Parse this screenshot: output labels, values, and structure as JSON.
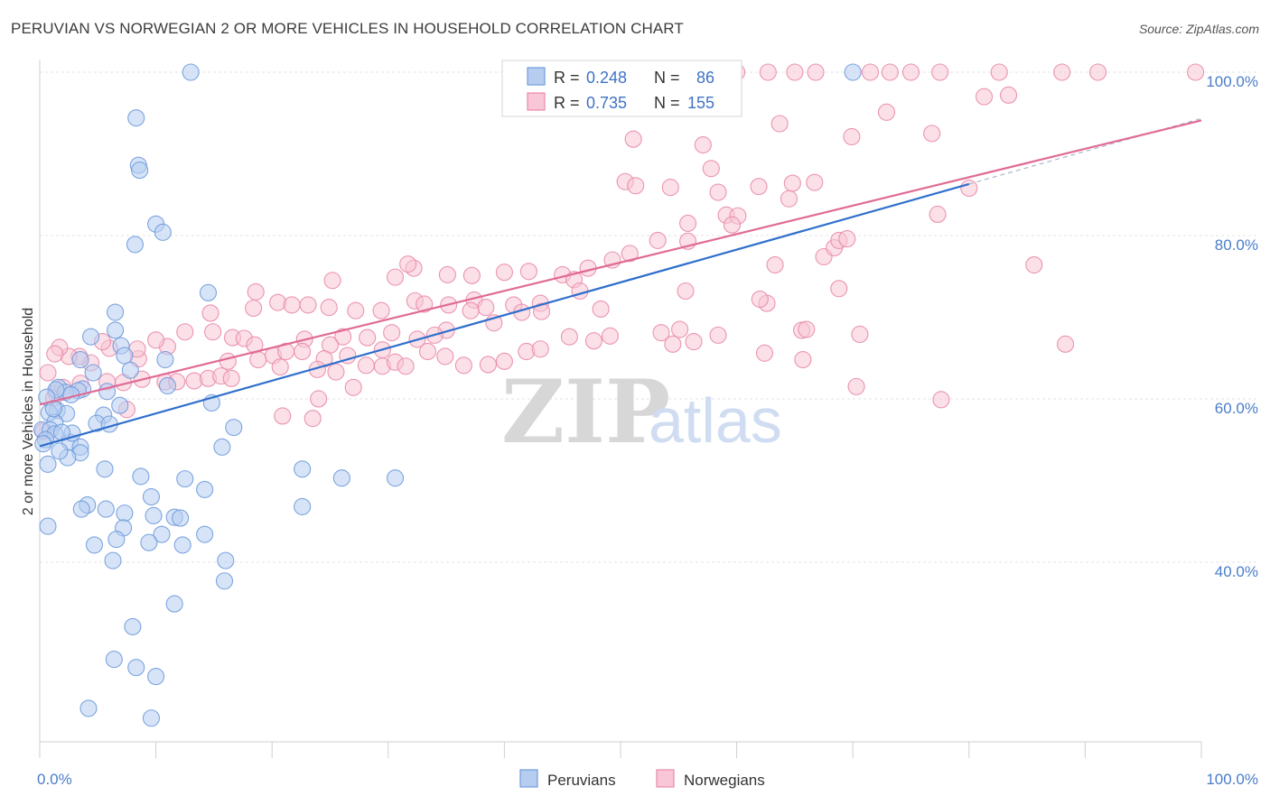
{
  "title": "PERUVIAN VS NORWEGIAN 2 OR MORE VEHICLES IN HOUSEHOLD CORRELATION CHART",
  "source": "Source: ZipAtlas.com",
  "watermark": {
    "part1": "ZIP",
    "part2": "atlas"
  },
  "legend_box": {
    "rows": [
      {
        "r_label": "R =",
        "r_value": "0.248",
        "n_label": "N =",
        "n_value": "86",
        "color": "#a9c4ec"
      },
      {
        "r_label": "R =",
        "r_value": "0.735",
        "n_label": "N =",
        "n_value": "155",
        "color": "#f5b3c8"
      }
    ]
  },
  "bottom_legend": [
    "Peruvians",
    "Norwegians"
  ],
  "chart_data": {
    "type": "scatter",
    "title": "PERUVIAN VS NORWEGIAN 2 OR MORE VEHICLES IN HOUSEHOLD CORRELATION CHART",
    "xlabel": "",
    "ylabel": "2 or more Vehicles in Household",
    "xlim": [
      0,
      100
    ],
    "ylim": [
      18,
      100
    ],
    "x_tick_labels": [
      "0.0%",
      "100.0%"
    ],
    "y_tick_labels": [
      "40.0%",
      "60.0%",
      "80.0%",
      "100.0%"
    ],
    "y_ticks": [
      40,
      60,
      80,
      100
    ],
    "grid": true,
    "legend_position": "top-center",
    "colors": {
      "peruvians": "#6f9bdd",
      "peruvians_fill": "#b6cdf0",
      "norwegians": "#e98aa8",
      "norwegians_fill": "#f8c6d6",
      "peru_line": "#2f6fcc",
      "norw_line": "#e06b94"
    },
    "series": [
      {
        "name": "Peruvians",
        "R": 0.248,
        "N": 86,
        "trend": {
          "x": [
            0,
            80
          ],
          "y": [
            54.2,
            86.3
          ]
        },
        "points": [
          [
            13,
            100
          ],
          [
            70,
            100
          ],
          [
            8.3,
            94.4
          ],
          [
            8.5,
            88.6
          ],
          [
            8.6,
            88
          ],
          [
            10,
            81.4
          ],
          [
            10.6,
            80.4
          ],
          [
            8.2,
            78.9
          ],
          [
            14.5,
            73
          ],
          [
            6.5,
            70.6
          ],
          [
            6.5,
            68.4
          ],
          [
            4.4,
            67.6
          ],
          [
            7,
            66.5
          ],
          [
            7.3,
            65.3
          ],
          [
            3.5,
            64.8
          ],
          [
            10.8,
            64.8
          ],
          [
            11,
            61.6
          ],
          [
            1.6,
            61.4
          ],
          [
            3.7,
            61.2
          ],
          [
            3.3,
            61
          ],
          [
            1.5,
            58.6
          ],
          [
            14.8,
            59.5
          ],
          [
            6.9,
            59.2
          ],
          [
            0.8,
            58.3
          ],
          [
            2.3,
            58.2
          ],
          [
            5.5,
            58
          ],
          [
            1.3,
            57.1
          ],
          [
            4.9,
            57
          ],
          [
            0.2,
            56.2
          ],
          [
            0.9,
            56.2
          ],
          [
            6,
            56.9
          ],
          [
            1.3,
            55.7
          ],
          [
            0.5,
            55
          ],
          [
            2.6,
            54.7
          ],
          [
            0.3,
            54.5
          ],
          [
            3.5,
            54.1
          ],
          [
            15.7,
            54.1
          ],
          [
            3.5,
            53.4
          ],
          [
            2.4,
            52.8
          ],
          [
            0.7,
            52
          ],
          [
            5.6,
            51.4
          ],
          [
            22.6,
            51.4
          ],
          [
            26,
            50.3
          ],
          [
            30.6,
            50.3
          ],
          [
            8.7,
            50.5
          ],
          [
            12.5,
            50.2
          ],
          [
            14.2,
            48.9
          ],
          [
            9.6,
            48
          ],
          [
            4.1,
            47
          ],
          [
            3.6,
            46.5
          ],
          [
            5.7,
            46.5
          ],
          [
            7.3,
            46
          ],
          [
            9.8,
            45.7
          ],
          [
            11.6,
            45.5
          ],
          [
            12.1,
            45.4
          ],
          [
            0.7,
            44.4
          ],
          [
            7.2,
            44.2
          ],
          [
            10.5,
            43.4
          ],
          [
            14.2,
            43.4
          ],
          [
            6.6,
            42.8
          ],
          [
            4.7,
            42.1
          ],
          [
            9.4,
            42.4
          ],
          [
            12.3,
            42.1
          ],
          [
            6.3,
            40.2
          ],
          [
            15.9,
            37.7
          ],
          [
            11.6,
            34.9
          ],
          [
            8,
            32.1
          ],
          [
            6.4,
            28.1
          ],
          [
            8.3,
            27.1
          ],
          [
            10,
            26
          ],
          [
            4.2,
            22.1
          ],
          [
            9.6,
            20.9
          ],
          [
            16.7,
            56.5
          ],
          [
            16,
            40.2
          ],
          [
            7.8,
            63.5
          ],
          [
            22.6,
            46.8
          ],
          [
            2.2,
            60.8
          ],
          [
            2.7,
            60.5
          ],
          [
            1.4,
            61.1
          ],
          [
            4.6,
            63.2
          ],
          [
            0.6,
            60.2
          ],
          [
            2.8,
            55.8
          ],
          [
            1.9,
            55.9
          ],
          [
            1.2,
            58.8
          ],
          [
            1.7,
            53.6
          ],
          [
            5.8,
            60.9
          ]
        ]
      },
      {
        "name": "Norwegians",
        "R": 0.735,
        "N": 155,
        "trend": {
          "x": [
            0,
            100
          ],
          "y": [
            59.3,
            94.1
          ]
        },
        "points": [
          [
            60,
            100
          ],
          [
            62.7,
            100
          ],
          [
            65,
            100
          ],
          [
            66.8,
            100
          ],
          [
            71.5,
            100
          ],
          [
            73.2,
            100
          ],
          [
            75,
            100
          ],
          [
            77.5,
            100
          ],
          [
            82.6,
            100
          ],
          [
            88,
            100
          ],
          [
            91.1,
            100
          ],
          [
            99.5,
            100
          ],
          [
            81.3,
            97
          ],
          [
            83.4,
            97.2
          ],
          [
            72.9,
            95.1
          ],
          [
            63.7,
            93.7
          ],
          [
            69.9,
            92.1
          ],
          [
            76.8,
            92.5
          ],
          [
            51.1,
            91.8
          ],
          [
            57.1,
            91.1
          ],
          [
            57.8,
            88.2
          ],
          [
            50.4,
            86.6
          ],
          [
            51.3,
            86.1
          ],
          [
            54.3,
            85.9
          ],
          [
            61.9,
            86
          ],
          [
            64.8,
            86.4
          ],
          [
            66.7,
            86.5
          ],
          [
            58.4,
            85.3
          ],
          [
            64.5,
            84.5
          ],
          [
            59.1,
            82.5
          ],
          [
            60.1,
            82.4
          ],
          [
            77.3,
            82.6
          ],
          [
            80,
            85.8
          ],
          [
            55.8,
            81.5
          ],
          [
            59.6,
            81.3
          ],
          [
            53.2,
            79.4
          ],
          [
            55.8,
            79.3
          ],
          [
            63.3,
            76.4
          ],
          [
            67.5,
            77.4
          ],
          [
            68.4,
            78.5
          ],
          [
            68.8,
            79.4
          ],
          [
            69.5,
            79.6
          ],
          [
            85.6,
            76.4
          ],
          [
            50.8,
            77.8
          ],
          [
            49.3,
            77
          ],
          [
            47.2,
            76
          ],
          [
            45,
            75.2
          ],
          [
            46,
            74.6
          ],
          [
            42.1,
            75.6
          ],
          [
            40,
            75.5
          ],
          [
            37.2,
            75.1
          ],
          [
            35.1,
            75.2
          ],
          [
            32.2,
            76
          ],
          [
            31.7,
            76.5
          ],
          [
            30.6,
            74.9
          ],
          [
            25.2,
            74.5
          ],
          [
            20.5,
            71.8
          ],
          [
            21.7,
            71.5
          ],
          [
            23.1,
            71.5
          ],
          [
            24.9,
            71.2
          ],
          [
            27.2,
            70.8
          ],
          [
            29.4,
            70.8
          ],
          [
            32.3,
            72
          ],
          [
            33.1,
            71.6
          ],
          [
            35.2,
            71.5
          ],
          [
            37.4,
            72.1
          ],
          [
            38.4,
            71.2
          ],
          [
            40.8,
            71.5
          ],
          [
            43.1,
            71.7
          ],
          [
            46.5,
            73.2
          ],
          [
            48.3,
            71
          ],
          [
            55.6,
            73.2
          ],
          [
            62.6,
            71.7
          ],
          [
            68.8,
            73.5
          ],
          [
            41.5,
            70.6
          ],
          [
            43.2,
            70.7
          ],
          [
            37.1,
            70.8
          ],
          [
            39.1,
            69.3
          ],
          [
            35,
            68.4
          ],
          [
            34,
            67.8
          ],
          [
            32.5,
            67.3
          ],
          [
            30.3,
            68.1
          ],
          [
            28.2,
            67.5
          ],
          [
            26.1,
            67.6
          ],
          [
            25,
            66.6
          ],
          [
            22.8,
            67.3
          ],
          [
            18.4,
            71.1
          ],
          [
            18.6,
            73.1
          ],
          [
            14.7,
            70.5
          ],
          [
            14.9,
            68.2
          ],
          [
            16.6,
            67.5
          ],
          [
            17.6,
            67.4
          ],
          [
            18.5,
            66.6
          ],
          [
            20.1,
            65.3
          ],
          [
            21.2,
            65.8
          ],
          [
            22.6,
            65.8
          ],
          [
            24.5,
            64.9
          ],
          [
            26.5,
            65.3
          ],
          [
            28.1,
            64.1
          ],
          [
            29.5,
            64
          ],
          [
            30.6,
            64.5
          ],
          [
            31.5,
            64
          ],
          [
            33.4,
            65.8
          ],
          [
            34.9,
            65.2
          ],
          [
            36.5,
            64.1
          ],
          [
            38.6,
            64.2
          ],
          [
            40,
            64.6
          ],
          [
            41.9,
            65.8
          ],
          [
            43.1,
            66.1
          ],
          [
            45.6,
            67.6
          ],
          [
            47.7,
            67.1
          ],
          [
            49.1,
            67.7
          ],
          [
            53.5,
            68.1
          ],
          [
            55.1,
            68.5
          ],
          [
            54.5,
            66.7
          ],
          [
            56.3,
            67
          ],
          [
            58.4,
            67.8
          ],
          [
            62,
            72.2
          ],
          [
            65.6,
            68.4
          ],
          [
            66,
            68.5
          ],
          [
            70.6,
            67.9
          ],
          [
            12.5,
            68.2
          ],
          [
            11,
            66.4
          ],
          [
            10,
            67.2
          ],
          [
            8.5,
            64.9
          ],
          [
            8.4,
            66.1
          ],
          [
            6,
            66.2
          ],
          [
            5.4,
            67
          ],
          [
            4.4,
            64.4
          ],
          [
            3.4,
            65.2
          ],
          [
            2.5,
            65.2
          ],
          [
            1.7,
            66.3
          ],
          [
            1.3,
            65.5
          ],
          [
            0.7,
            63.2
          ],
          [
            1.4,
            60.7
          ],
          [
            1.2,
            60.1
          ],
          [
            2,
            61.4
          ],
          [
            3.5,
            61.9
          ],
          [
            5.8,
            62.1
          ],
          [
            7.2,
            62
          ],
          [
            8.8,
            62.4
          ],
          [
            10.8,
            62.1
          ],
          [
            11.8,
            62.1
          ],
          [
            13.3,
            62.2
          ],
          [
            14.5,
            62.5
          ],
          [
            15.6,
            62.8
          ],
          [
            16.5,
            62.5
          ],
          [
            23.9,
            63.6
          ],
          [
            25.5,
            63.3
          ],
          [
            27,
            61.4
          ],
          [
            29.5,
            66
          ],
          [
            16.2,
            64.6
          ],
          [
            18.8,
            64.8
          ],
          [
            20.7,
            63.9
          ],
          [
            24,
            60
          ],
          [
            20.9,
            57.9
          ],
          [
            23.5,
            57.6
          ],
          [
            7.5,
            58.7
          ],
          [
            0.3,
            56
          ],
          [
            88.3,
            66.7
          ],
          [
            77.6,
            59.9
          ],
          [
            70.3,
            61.5
          ],
          [
            65.7,
            64.8
          ],
          [
            62.4,
            65.6
          ]
        ]
      }
    ]
  }
}
